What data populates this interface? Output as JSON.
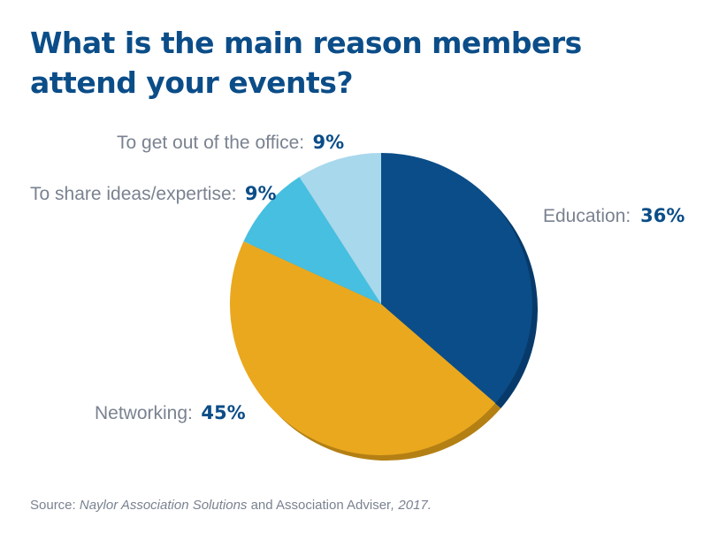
{
  "title": "What is the main reason members attend your events?",
  "source": {
    "prefix": "Source: ",
    "part1": "Naylor Association Solutions",
    "joiner": " and ",
    "part2": "Association Adviser",
    "suffix": ", 2017."
  },
  "chart_data": {
    "type": "pie",
    "title": "What is the main reason members attend your events?",
    "slices": [
      {
        "label": "Education:",
        "value": 36,
        "display": "36%",
        "color": "#0b4d88",
        "side_color": "#073a6a"
      },
      {
        "label": "Networking:",
        "value": 45,
        "display": "45%",
        "color": "#eaa81f",
        "side_color": "#b48014"
      },
      {
        "label": "To share ideas/expertise:",
        "value": 9,
        "display": "9%",
        "color": "#46bfe0",
        "side_color": "#2f98b6"
      },
      {
        "label": "To get out of the office:",
        "value": 9,
        "display": "9%",
        "color": "#a8d8ec",
        "side_color": "#80b8cf"
      }
    ],
    "start": "12 o'clock",
    "direction": "clockwise",
    "legend": "none"
  }
}
